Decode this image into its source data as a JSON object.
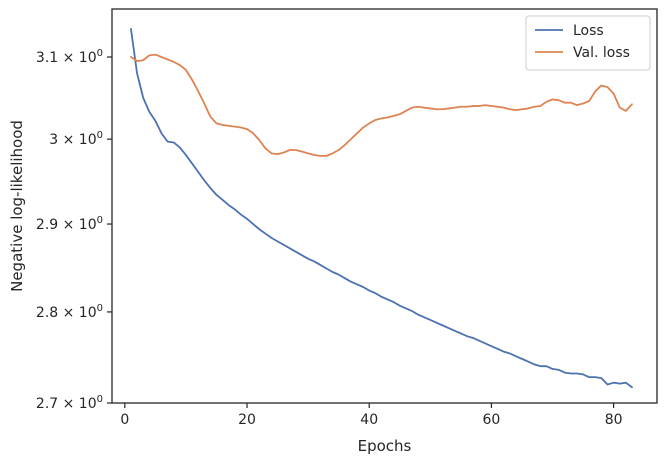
{
  "chart_data": {
    "type": "line",
    "title": "",
    "xlabel": "Epochs",
    "ylabel": "Negative log-likelihood",
    "yscale": "log",
    "xlim": [
      -2.1,
      87.1
    ],
    "ylim": [
      2.7,
      3.16
    ],
    "x_ticks": [
      {
        "value": 0,
        "label": "0"
      },
      {
        "value": 20,
        "label": "20"
      },
      {
        "value": 40,
        "label": "40"
      },
      {
        "value": 60,
        "label": "60"
      },
      {
        "value": 80,
        "label": "80"
      }
    ],
    "y_ticks": [
      {
        "value": 2.7,
        "base": "2.7 × 10",
        "exp": "0"
      },
      {
        "value": 2.8,
        "base": "2.8 × 10",
        "exp": "0"
      },
      {
        "value": 2.9,
        "base": "2.9 × 10",
        "exp": "0"
      },
      {
        "value": 3.0,
        "base": "3 × 10",
        "exp": "0"
      },
      {
        "value": 3.1,
        "base": "3.1 × 10",
        "exp": "0"
      }
    ],
    "grid": false,
    "legend_position": "top-right",
    "series": [
      {
        "name": "Loss",
        "color": "#4c72b0",
        "x": [
          1,
          2,
          3,
          4,
          5,
          6,
          7,
          8,
          9,
          10,
          11,
          12,
          13,
          14,
          15,
          16,
          17,
          18,
          19,
          20,
          21,
          22,
          23,
          24,
          25,
          26,
          27,
          28,
          29,
          30,
          31,
          32,
          33,
          34,
          35,
          36,
          37,
          38,
          39,
          40,
          41,
          42,
          43,
          44,
          45,
          46,
          47,
          48,
          49,
          50,
          51,
          52,
          53,
          54,
          55,
          56,
          57,
          58,
          59,
          60,
          61,
          62,
          63,
          64,
          65,
          66,
          67,
          68,
          69,
          70,
          71,
          72,
          73,
          74,
          75,
          76,
          77,
          78,
          79,
          80,
          81,
          82,
          83
        ],
        "y": [
          3.135,
          3.08,
          3.05,
          3.033,
          3.022,
          3.007,
          2.997,
          2.996,
          2.99,
          2.981,
          2.971,
          2.961,
          2.951,
          2.942,
          2.934,
          2.928,
          2.922,
          2.917,
          2.911,
          2.906,
          2.9,
          2.894,
          2.889,
          2.884,
          2.88,
          2.876,
          2.872,
          2.868,
          2.864,
          2.86,
          2.857,
          2.853,
          2.849,
          2.845,
          2.842,
          2.838,
          2.834,
          2.831,
          2.828,
          2.824,
          2.821,
          2.817,
          2.814,
          2.811,
          2.807,
          2.804,
          2.801,
          2.797,
          2.794,
          2.791,
          2.788,
          2.785,
          2.782,
          2.779,
          2.776,
          2.773,
          2.771,
          2.768,
          2.765,
          2.762,
          2.759,
          2.756,
          2.754,
          2.751,
          2.748,
          2.745,
          2.742,
          2.74,
          2.74,
          2.737,
          2.736,
          2.733,
          2.732,
          2.732,
          2.731,
          2.728,
          2.728,
          2.727,
          2.72,
          2.722,
          2.721,
          2.722,
          2.717
        ]
      },
      {
        "name": "Val. loss",
        "color": "#dd8452",
        "x": [
          1,
          2,
          3,
          4,
          5,
          6,
          7,
          8,
          9,
          10,
          11,
          12,
          13,
          14,
          15,
          16,
          17,
          18,
          19,
          20,
          21,
          22,
          23,
          24,
          25,
          26,
          27,
          28,
          29,
          30,
          31,
          32,
          33,
          34,
          35,
          36,
          37,
          38,
          39,
          40,
          41,
          42,
          43,
          44,
          45,
          46,
          47,
          48,
          49,
          50,
          51,
          52,
          53,
          54,
          55,
          56,
          57,
          58,
          59,
          60,
          61,
          62,
          63,
          64,
          65,
          66,
          67,
          68,
          69,
          70,
          71,
          72,
          73,
          74,
          75,
          76,
          77,
          78,
          79,
          80,
          81,
          82,
          83
        ],
        "y": [
          3.1,
          3.095,
          3.096,
          3.102,
          3.103,
          3.1,
          3.097,
          3.094,
          3.09,
          3.084,
          3.072,
          3.058,
          3.043,
          3.027,
          3.019,
          3.017,
          3.016,
          3.015,
          3.014,
          3.012,
          3.007,
          2.999,
          2.989,
          2.983,
          2.982,
          2.984,
          2.987,
          2.987,
          2.985,
          2.983,
          2.981,
          2.98,
          2.98,
          2.983,
          2.987,
          2.993,
          3.0,
          3.007,
          3.014,
          3.019,
          3.023,
          3.025,
          3.026,
          3.028,
          3.03,
          3.034,
          3.038,
          3.039,
          3.038,
          3.037,
          3.036,
          3.036,
          3.037,
          3.038,
          3.039,
          3.039,
          3.04,
          3.04,
          3.041,
          3.04,
          3.039,
          3.038,
          3.036,
          3.035,
          3.036,
          3.037,
          3.039,
          3.04,
          3.045,
          3.048,
          3.047,
          3.044,
          3.044,
          3.041,
          3.043,
          3.046,
          3.058,
          3.065,
          3.063,
          3.055,
          3.038,
          3.034,
          3.042
        ]
      }
    ]
  }
}
